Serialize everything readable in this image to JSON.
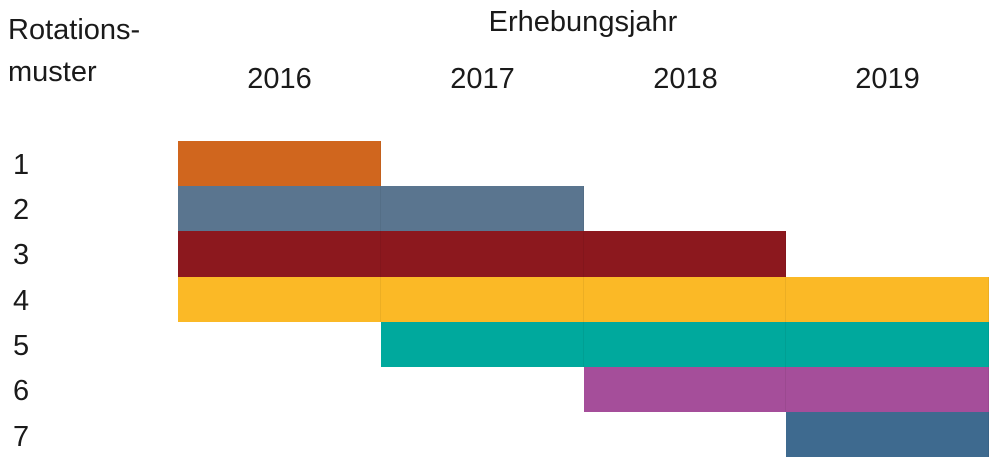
{
  "corner_header": {
    "line1": "Rotations-",
    "line2": "muster"
  },
  "column_header": "Erhebungsjahr",
  "years": [
    "2016",
    "2017",
    "2018",
    "2019"
  ],
  "rows": [
    {
      "label": "1",
      "color": "#d0661e",
      "years": [
        "2016"
      ]
    },
    {
      "label": "2",
      "color": "#5a758f",
      "years": [
        "2016",
        "2017"
      ]
    },
    {
      "label": "3",
      "color": "#8c181e",
      "years": [
        "2016",
        "2017",
        "2018"
      ]
    },
    {
      "label": "4",
      "color": "#fbb926",
      "years": [
        "2016",
        "2017",
        "2018",
        "2019"
      ]
    },
    {
      "label": "5",
      "color": "#00a99d",
      "years": [
        "2017",
        "2018",
        "2019"
      ]
    },
    {
      "label": "6",
      "color": "#a54e9a",
      "years": [
        "2018",
        "2019"
      ]
    },
    {
      "label": "7",
      "color": "#3e6a8f",
      "years": [
        "2019"
      ]
    }
  ]
}
